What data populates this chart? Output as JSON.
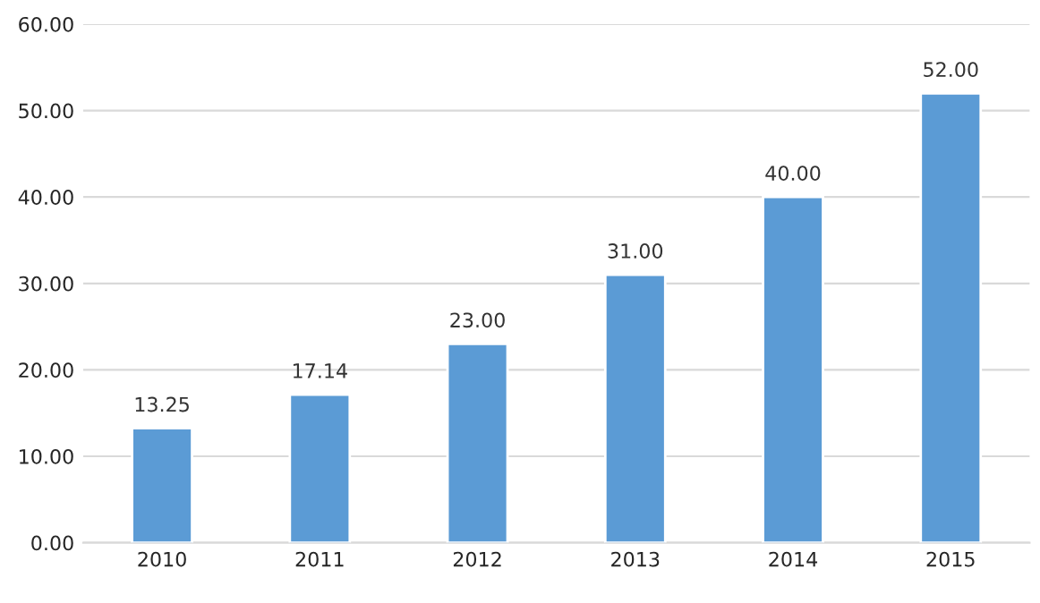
{
  "chart_data": {
    "type": "bar",
    "categories": [
      "2010",
      "2011",
      "2012",
      "2013",
      "2014",
      "2015"
    ],
    "values": [
      13.25,
      17.14,
      23.0,
      31.0,
      40.0,
      52.0
    ],
    "value_labels": [
      "13.25",
      "17.14",
      "23.00",
      "31.00",
      "40.00",
      "52.00"
    ],
    "color": "#5b9bd5",
    "ylim": [
      0,
      60
    ],
    "yticks": [
      {
        "value": 0,
        "label": "0.00"
      },
      {
        "value": 10,
        "label": "10.00"
      },
      {
        "value": 20,
        "label": "20.00"
      },
      {
        "value": 30,
        "label": "30.00"
      },
      {
        "value": 40,
        "label": "40.00"
      },
      {
        "value": 50,
        "label": "50.00"
      },
      {
        "value": 60,
        "label": "60.00"
      }
    ],
    "grid": "y"
  }
}
